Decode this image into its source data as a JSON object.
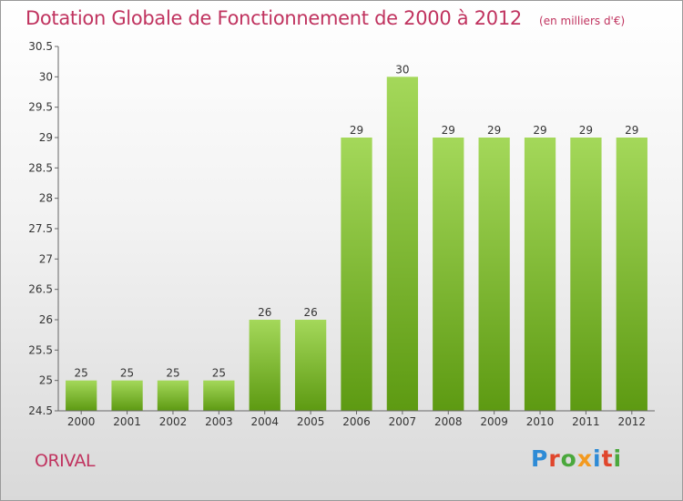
{
  "header": {
    "title": "Dotation Globale de Fonctionnement de 2000 à 2012",
    "subtitle": "(en milliers d'€)"
  },
  "commune": "ORIVAL",
  "logo": {
    "text": "Proxiti",
    "letter_colors": [
      "#2e8bd6",
      "#e0462c",
      "#4aa83c",
      "#f39a1f",
      "#2e8bd6",
      "#e0462c",
      "#4aa83c"
    ]
  },
  "colors": {
    "bar_light": "#a4d85a",
    "bar_dark": "#5d9a12",
    "accent": "#c0335f"
  },
  "chart_data": {
    "type": "bar",
    "categories": [
      "2000",
      "2001",
      "2002",
      "2003",
      "2004",
      "2005",
      "2006",
      "2007",
      "2008",
      "2009",
      "2010",
      "2011",
      "2012"
    ],
    "values": [
      25,
      25,
      25,
      25,
      26,
      26,
      29,
      30,
      29,
      29,
      29,
      29,
      29
    ],
    "y_ticks": [
      24.5,
      25,
      25.5,
      26,
      26.5,
      27,
      27.5,
      28,
      28.5,
      29,
      29.5,
      30,
      30.5
    ],
    "ylim": [
      24.5,
      30.5
    ],
    "grid": false,
    "legend": "none"
  }
}
